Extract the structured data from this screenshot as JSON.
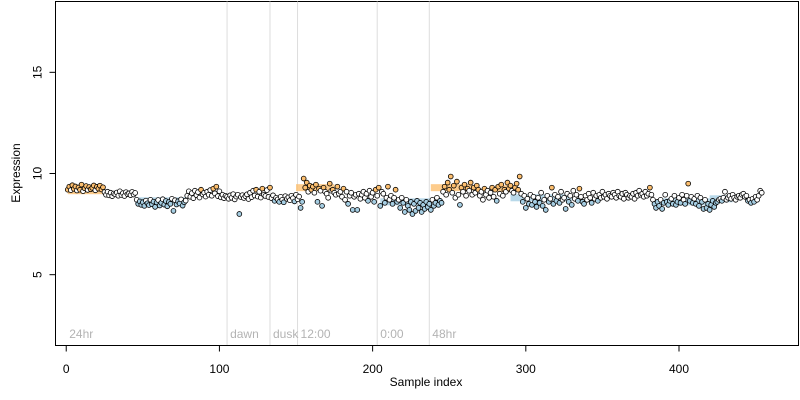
{
  "chart_data": {
    "type": "scatter",
    "title": "",
    "xlabel": "Sample index",
    "ylabel": "Expression",
    "xlim": [
      -7,
      478
    ],
    "ylim": [
      1.5,
      18.5
    ],
    "xticks": [
      0,
      100,
      200,
      300,
      400
    ],
    "yticks": [
      5,
      10,
      15
    ],
    "grid": false,
    "legend": "none",
    "colors": {
      "point_outline": "#000000",
      "point_fill_default": "#ffffff",
      "point_fill_high": "#fdbf6f",
      "point_fill_low": "#a6cee3",
      "bar_high": "#fdbf6f",
      "bar_low": "#a6cee3",
      "phase_line": "#dddddd",
      "phase_label": "#b3b3b3"
    },
    "phase_markers": [
      {
        "x": 0,
        "label": "24hr",
        "line": false
      },
      {
        "x": 105,
        "label": "dawn",
        "line": true
      },
      {
        "x": 133,
        "label": "dusk",
        "line": true
      },
      {
        "x": 151,
        "label": "12:00",
        "line": true
      },
      {
        "x": 203,
        "label": "0:00",
        "line": true
      },
      {
        "x": 237,
        "label": "48hr",
        "line": true
      }
    ],
    "segments": [
      {
        "x0": 1,
        "x1": 24,
        "y": 9.15,
        "level": "high"
      },
      {
        "x0": 24,
        "x1": 45,
        "y": 9.0,
        "level": "mid"
      },
      {
        "x0": 45,
        "x1": 78,
        "y": 8.65,
        "level": "low"
      },
      {
        "x0": 78,
        "x1": 98,
        "y": 8.95,
        "level": "mid"
      },
      {
        "x0": 98,
        "x1": 150,
        "y": 8.9,
        "level": "mid"
      },
      {
        "x0": 150,
        "x1": 175,
        "y": 9.3,
        "level": "high"
      },
      {
        "x0": 175,
        "x1": 205,
        "y": 9.0,
        "level": "mid"
      },
      {
        "x0": 205,
        "x1": 238,
        "y": 8.6,
        "level": "low"
      },
      {
        "x0": 238,
        "x1": 265,
        "y": 9.3,
        "level": "high"
      },
      {
        "x0": 265,
        "x1": 280,
        "y": 9.05,
        "level": "mid"
      },
      {
        "x0": 280,
        "x1": 290,
        "y": 9.25,
        "level": "high"
      },
      {
        "x0": 290,
        "x1": 330,
        "y": 8.8,
        "level": "low"
      },
      {
        "x0": 330,
        "x1": 388,
        "y": 8.9,
        "level": "mid"
      },
      {
        "x0": 388,
        "x1": 420,
        "y": 8.6,
        "level": "low"
      },
      {
        "x0": 420,
        "x1": 435,
        "y": 8.75,
        "level": "low"
      },
      {
        "x0": 435,
        "x1": 460,
        "y": 8.85,
        "level": "mid"
      }
    ],
    "series": [
      {
        "x_start": 1,
        "x_step": 1,
        "values": [
          9.2,
          9.35,
          9.18,
          9.42,
          9.24,
          9.36,
          9.16,
          9.31,
          9.2,
          9.45,
          9.13,
          9.27,
          9.38,
          9.19,
          9.33,
          9.22,
          9.29,
          9.41,
          9.17,
          9.34,
          9.25,
          9.4,
          9.21,
          9.32,
          9.08,
          8.95,
          9.1,
          8.92,
          9.05,
          8.88,
          9.01,
          8.97,
          9.06,
          8.9,
          9.12,
          8.94,
          9.03,
          8.89,
          9.08,
          8.98,
          9.02,
          8.93,
          9.09,
          8.96,
          9.04,
          8.7,
          8.5,
          8.62,
          8.45,
          8.58,
          8.4,
          8.66,
          8.53,
          8.44,
          8.7,
          8.48,
          8.61,
          8.35,
          8.57,
          8.69,
          8.42,
          8.55,
          8.73,
          8.46,
          8.64,
          8.38,
          8.59,
          8.5,
          8.75,
          8.15,
          8.68,
          8.47,
          8.63,
          8.52,
          8.72,
          8.41,
          8.58,
          8.66,
          8.9,
          9.12,
          8.85,
          9.03,
          8.78,
          9.15,
          8.93,
          9.08,
          8.81,
          9.2,
          8.97,
          9.05,
          8.86,
          9.1,
          8.95,
          9.18,
          8.9,
          9.25,
          9.02,
          9.35,
          8.88,
          9.12,
          8.82,
          8.95,
          8.78,
          8.9,
          8.85,
          8.75,
          8.92,
          8.8,
          8.98,
          8.72,
          8.86,
          8.95,
          8.0,
          8.84,
          8.93,
          8.79,
          8.88,
          8.97,
          8.74,
          9.05,
          8.83,
          9.15,
          8.91,
          9.2,
          8.86,
          9.1,
          8.81,
          9.25,
          8.95,
          8.89,
          9.18,
          8.84,
          9.3,
          8.78,
          8.92,
          8.65,
          8.8,
          8.72,
          8.6,
          8.85,
          8.7,
          8.58,
          8.88,
          8.75,
          8.82,
          8.68,
          8.9,
          8.78,
          8.62,
          8.95,
          8.73,
          8.86,
          8.3,
          8.6,
          9.75,
          9.3,
          9.55,
          9.1,
          9.4,
          9.2,
          9.35,
          9.05,
          9.45,
          8.6,
          9.25,
          9.15,
          8.4,
          9.3,
          9.1,
          9.0,
          8.8,
          9.5,
          9.15,
          9.2,
          9.05,
          8.95,
          9.35,
          9.0,
          9.1,
          8.85,
          9.25,
          8.7,
          9.1,
          8.5,
          8.9,
          9.05,
          8.2,
          8.85,
          8.95,
          8.2,
          9.0,
          8.75,
          8.95,
          9.1,
          8.8,
          9.0,
          8.65,
          9.15,
          8.85,
          9.05,
          8.6,
          9.2,
          8.9,
          9.3,
          8.4,
          9.1,
          9.0,
          8.55,
          8.8,
          9.35,
          8.7,
          8.9,
          8.5,
          8.8,
          9.2,
          8.6,
          8.7,
          8.3,
          8.8,
          8.55,
          8.1,
          8.7,
          8.4,
          8.2,
          8.6,
          8.0,
          8.5,
          8.15,
          8.65,
          8.3,
          8.55,
          8.1,
          8.45,
          8.25,
          8.6,
          8.35,
          8.5,
          8.2,
          8.7,
          8.4,
          8.55,
          8.8,
          8.45,
          8.65,
          8.55,
          9.1,
          9.35,
          8.95,
          9.55,
          9.2,
          9.85,
          9.05,
          9.4,
          8.8,
          9.6,
          8.95,
          8.45,
          9.3,
          9.1,
          9.45,
          8.9,
          9.25,
          9.15,
          9.55,
          8.95,
          9.3,
          9.05,
          9.4,
          9.2,
          8.9,
          9.1,
          8.7,
          9.25,
          8.95,
          9.15,
          8.8,
          9.05,
          9.3,
          8.85,
          9.2,
          8.65,
          9.35,
          9.0,
          9.45,
          8.9,
          9.2,
          9.1,
          9.55,
          9.25,
          9.4,
          9.15,
          9.05,
          9.3,
          9.5,
          9.2,
          9.85,
          9.0,
          8.6,
          8.9,
          8.3,
          8.75,
          8.5,
          8.95,
          8.45,
          8.85,
          8.6,
          8.35,
          8.8,
          8.55,
          9.05,
          8.4,
          8.7,
          8.2,
          8.9,
          8.6,
          8.75,
          9.3,
          8.5,
          8.95,
          8.65,
          8.85,
          8.55,
          9.1,
          8.7,
          8.8,
          8.25,
          9.0,
          8.6,
          8.9,
          8.45,
          9.15,
          8.75,
          8.95,
          8.65,
          9.25,
          8.85,
          8.6,
          8.5,
          8.9,
          8.7,
          9.0,
          8.8,
          8.55,
          9.05,
          8.75,
          8.9,
          8.65,
          8.95,
          8.8,
          9.1,
          8.85,
          8.95,
          8.75,
          9.0,
          8.9,
          8.85,
          9.05,
          8.95,
          8.8,
          9.1,
          8.9,
          8.85,
          9.0,
          8.75,
          9.05,
          8.95,
          8.8,
          8.9,
          8.85,
          9.0,
          8.75,
          9.05,
          8.9,
          9.15,
          8.95,
          9.0,
          8.85,
          9.1,
          8.9,
          9.0,
          9.3,
          8.95,
          8.7,
          8.5,
          8.3,
          8.6,
          8.4,
          8.7,
          8.25,
          8.55,
          8.95,
          8.6,
          8.45,
          8.65,
          8.75,
          8.5,
          8.9,
          8.45,
          8.6,
          8.8,
          8.55,
          8.95,
          8.7,
          8.5,
          8.9,
          9.5,
          8.65,
          8.85,
          8.55,
          8.75,
          8.5,
          8.9,
          8.4,
          8.8,
          8.6,
          8.25,
          8.7,
          8.3,
          8.5,
          8.2,
          8.45,
          8.65,
          8.35,
          8.55,
          8.6,
          8.7,
          8.75,
          8.65,
          8.8,
          9.1,
          8.7,
          8.8,
          8.9,
          8.75,
          8.95,
          8.8,
          8.7,
          8.85,
          8.9,
          8.8,
          8.95,
          9.0,
          8.85,
          8.9,
          8.65,
          8.7,
          8.55,
          8.75,
          8.6,
          8.85,
          8.7,
          8.9,
          9.15,
          9.05
        ]
      }
    ]
  }
}
